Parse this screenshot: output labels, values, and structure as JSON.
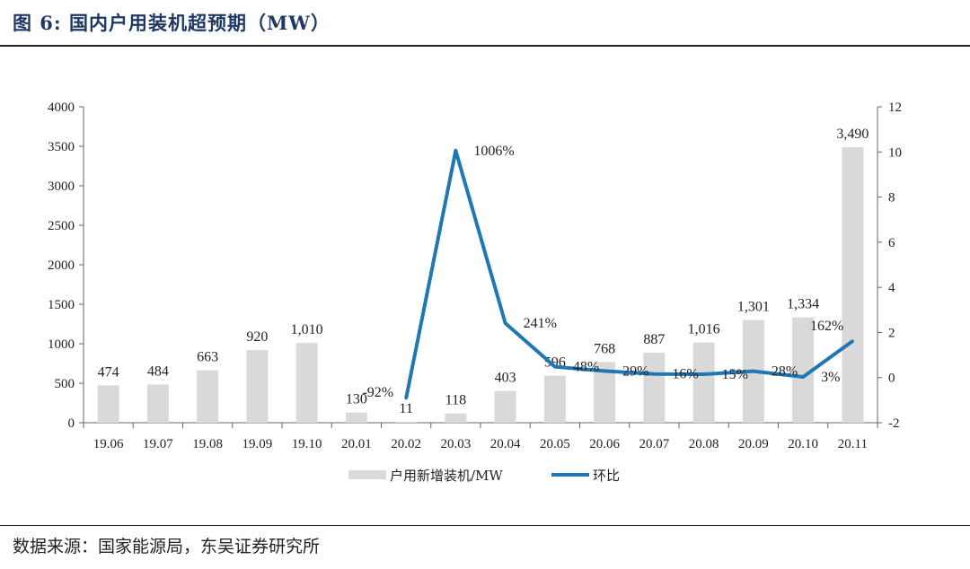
{
  "title": "图 6:  国内户用装机超预期（MW）",
  "source": "数据来源：国家能源局，东吴证券研究所",
  "chart_data": {
    "type": "bar+line",
    "categories": [
      "19.06",
      "19.07",
      "19.08",
      "19.09",
      "19.10",
      "20.01",
      "20.02",
      "20.03",
      "20.04",
      "20.05",
      "20.06",
      "20.07",
      "20.08",
      "20.09",
      "20.10",
      "20.11"
    ],
    "series": [
      {
        "name": "户用新增装机/MW",
        "type": "bar",
        "axis": "left",
        "color": "#d9d9d9",
        "values": [
          474,
          484,
          663,
          920,
          1010,
          130,
          11,
          118,
          403,
          596,
          768,
          887,
          1016,
          1301,
          1334,
          3490
        ],
        "labels": [
          "474",
          "484",
          "663",
          "920",
          "1,010",
          "130",
          "11",
          "118",
          "403",
          "596",
          "768",
          "887",
          "1,016",
          "1,301",
          "1,334",
          "3,490"
        ]
      },
      {
        "name": "环比",
        "type": "line",
        "axis": "right",
        "color": "#1f77b4",
        "values": [
          null,
          null,
          null,
          null,
          null,
          null,
          -0.92,
          10.06,
          2.41,
          0.48,
          0.29,
          0.16,
          0.15,
          0.28,
          0.03,
          1.62
        ],
        "labels": [
          null,
          null,
          null,
          null,
          null,
          null,
          "-92%",
          "1006%",
          "241%",
          "48%",
          "29%",
          "16%",
          "15%",
          "28%",
          "3%",
          "162%"
        ]
      }
    ],
    "left_axis": {
      "range": [
        0,
        4000
      ],
      "ticks": [
        "0",
        "500",
        "1000",
        "1500",
        "2000",
        "2500",
        "3000",
        "3500",
        "4000"
      ]
    },
    "right_axis": {
      "range": [
        -2,
        12
      ],
      "ticks": [
        "-2",
        "0",
        "2",
        "4",
        "6",
        "8",
        "10",
        "12"
      ]
    },
    "legend_position": "bottom",
    "grid": false
  }
}
